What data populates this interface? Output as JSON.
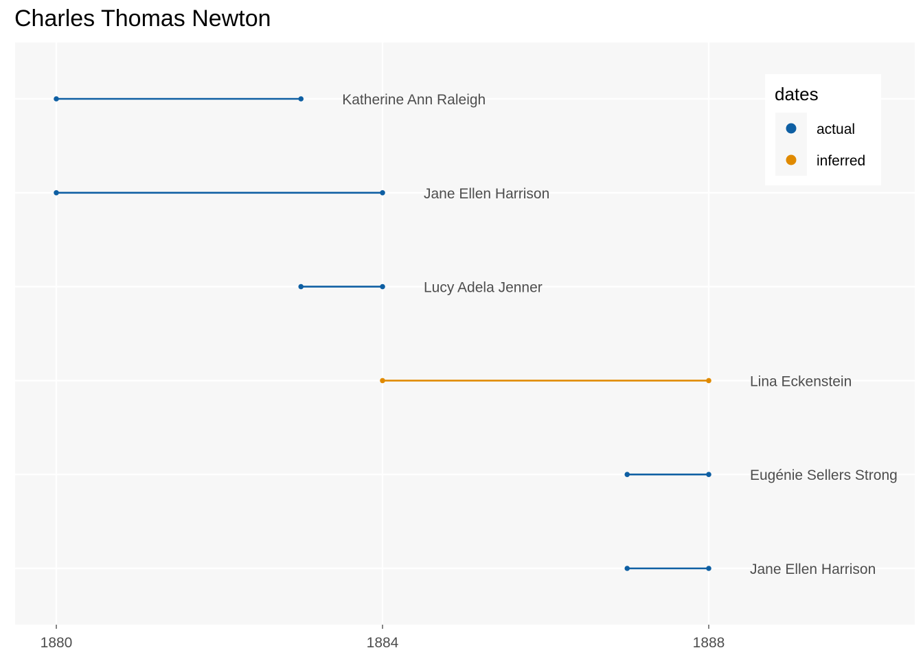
{
  "chart_data": {
    "type": "timeline",
    "title": "Charles Thomas Newton",
    "xlabel": "",
    "ylabel": "",
    "xlim": [
      1879.9,
      1890.4
    ],
    "x_ticks": [
      "1880",
      "1884",
      "1888"
    ],
    "x_tick_values": [
      1880,
      1884,
      1888
    ],
    "grid": true,
    "legend": {
      "title": "dates",
      "position": "top-right",
      "entries": [
        {
          "label": "actual",
          "color": "#0e5fa3"
        },
        {
          "label": "inferred",
          "color": "#e08a00"
        }
      ]
    },
    "series": [
      {
        "label": "Katherine Ann Raleigh",
        "start": 1880,
        "end": 1883,
        "dates": "actual"
      },
      {
        "label": "Jane Ellen Harrison",
        "start": 1880,
        "end": 1884,
        "dates": "actual"
      },
      {
        "label": "Lucy Adela Jenner",
        "start": 1883,
        "end": 1884,
        "dates": "actual"
      },
      {
        "label": "Lina Eckenstein",
        "start": 1884,
        "end": 1888,
        "dates": "inferred"
      },
      {
        "label": "Eugénie Sellers Strong",
        "start": 1887,
        "end": 1888,
        "dates": "actual"
      },
      {
        "label": "Jane Ellen Harrison",
        "start": 1887,
        "end": 1888,
        "dates": "actual"
      }
    ]
  }
}
